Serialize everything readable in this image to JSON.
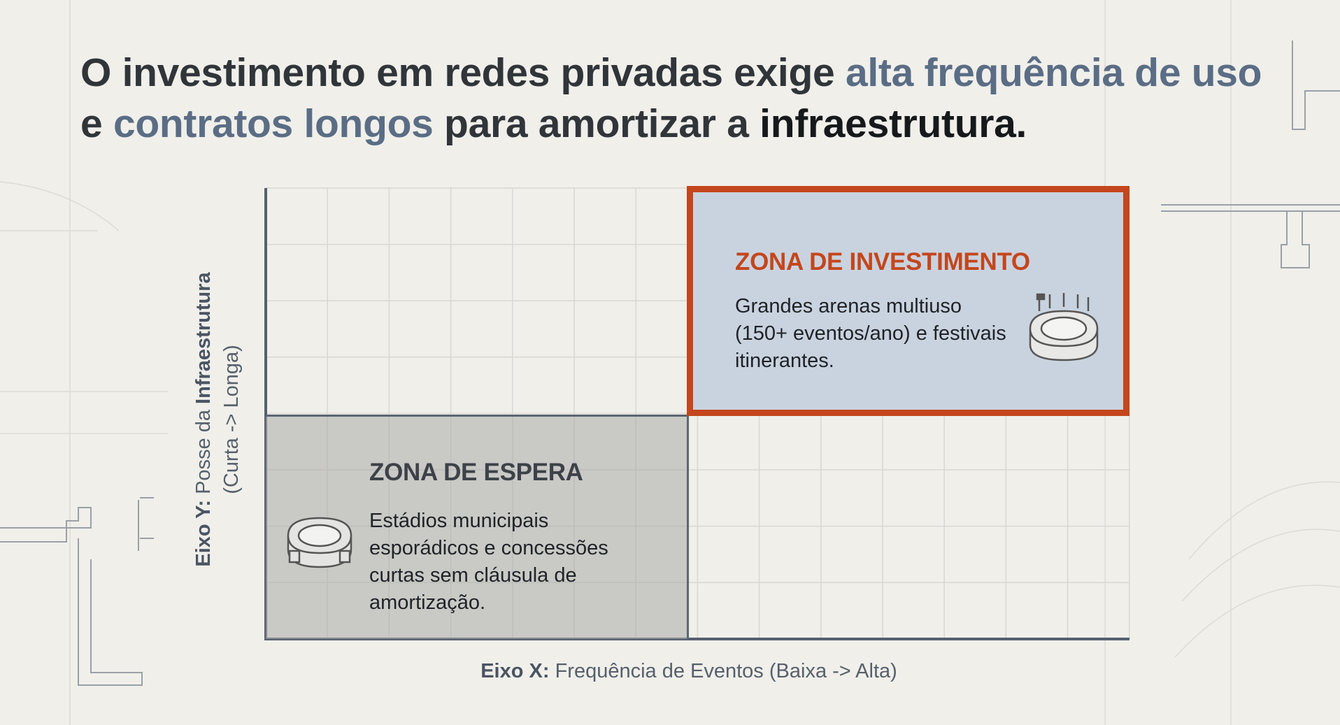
{
  "title": {
    "parts": [
      "O investimento em redes privadas exige",
      "alta frequência de uso",
      "e",
      "contratos longos",
      "para amortizar a",
      "infraestrutura."
    ]
  },
  "matrix": {
    "zones": [
      {
        "title": "ZONA DE INVESTIMENTO",
        "description": "Grandes arenas multiuso (150+ eventos/ano) e festivais itinerantes."
      },
      {
        "title": "ZONA DE ESPERA",
        "description": "Estádios municipais esporádicos e concessões curtas sem cláusula de amortização."
      }
    ],
    "y_axis": {
      "prefix": "Eixo Y:",
      "text": "Posse da",
      "emphasis": "Infraestrutura",
      "range": "(Curta -> Longa)"
    },
    "x_axis": {
      "prefix": "Eixo X:",
      "text": "Frequência de Eventos (Baixa -> Alta)"
    }
  }
}
